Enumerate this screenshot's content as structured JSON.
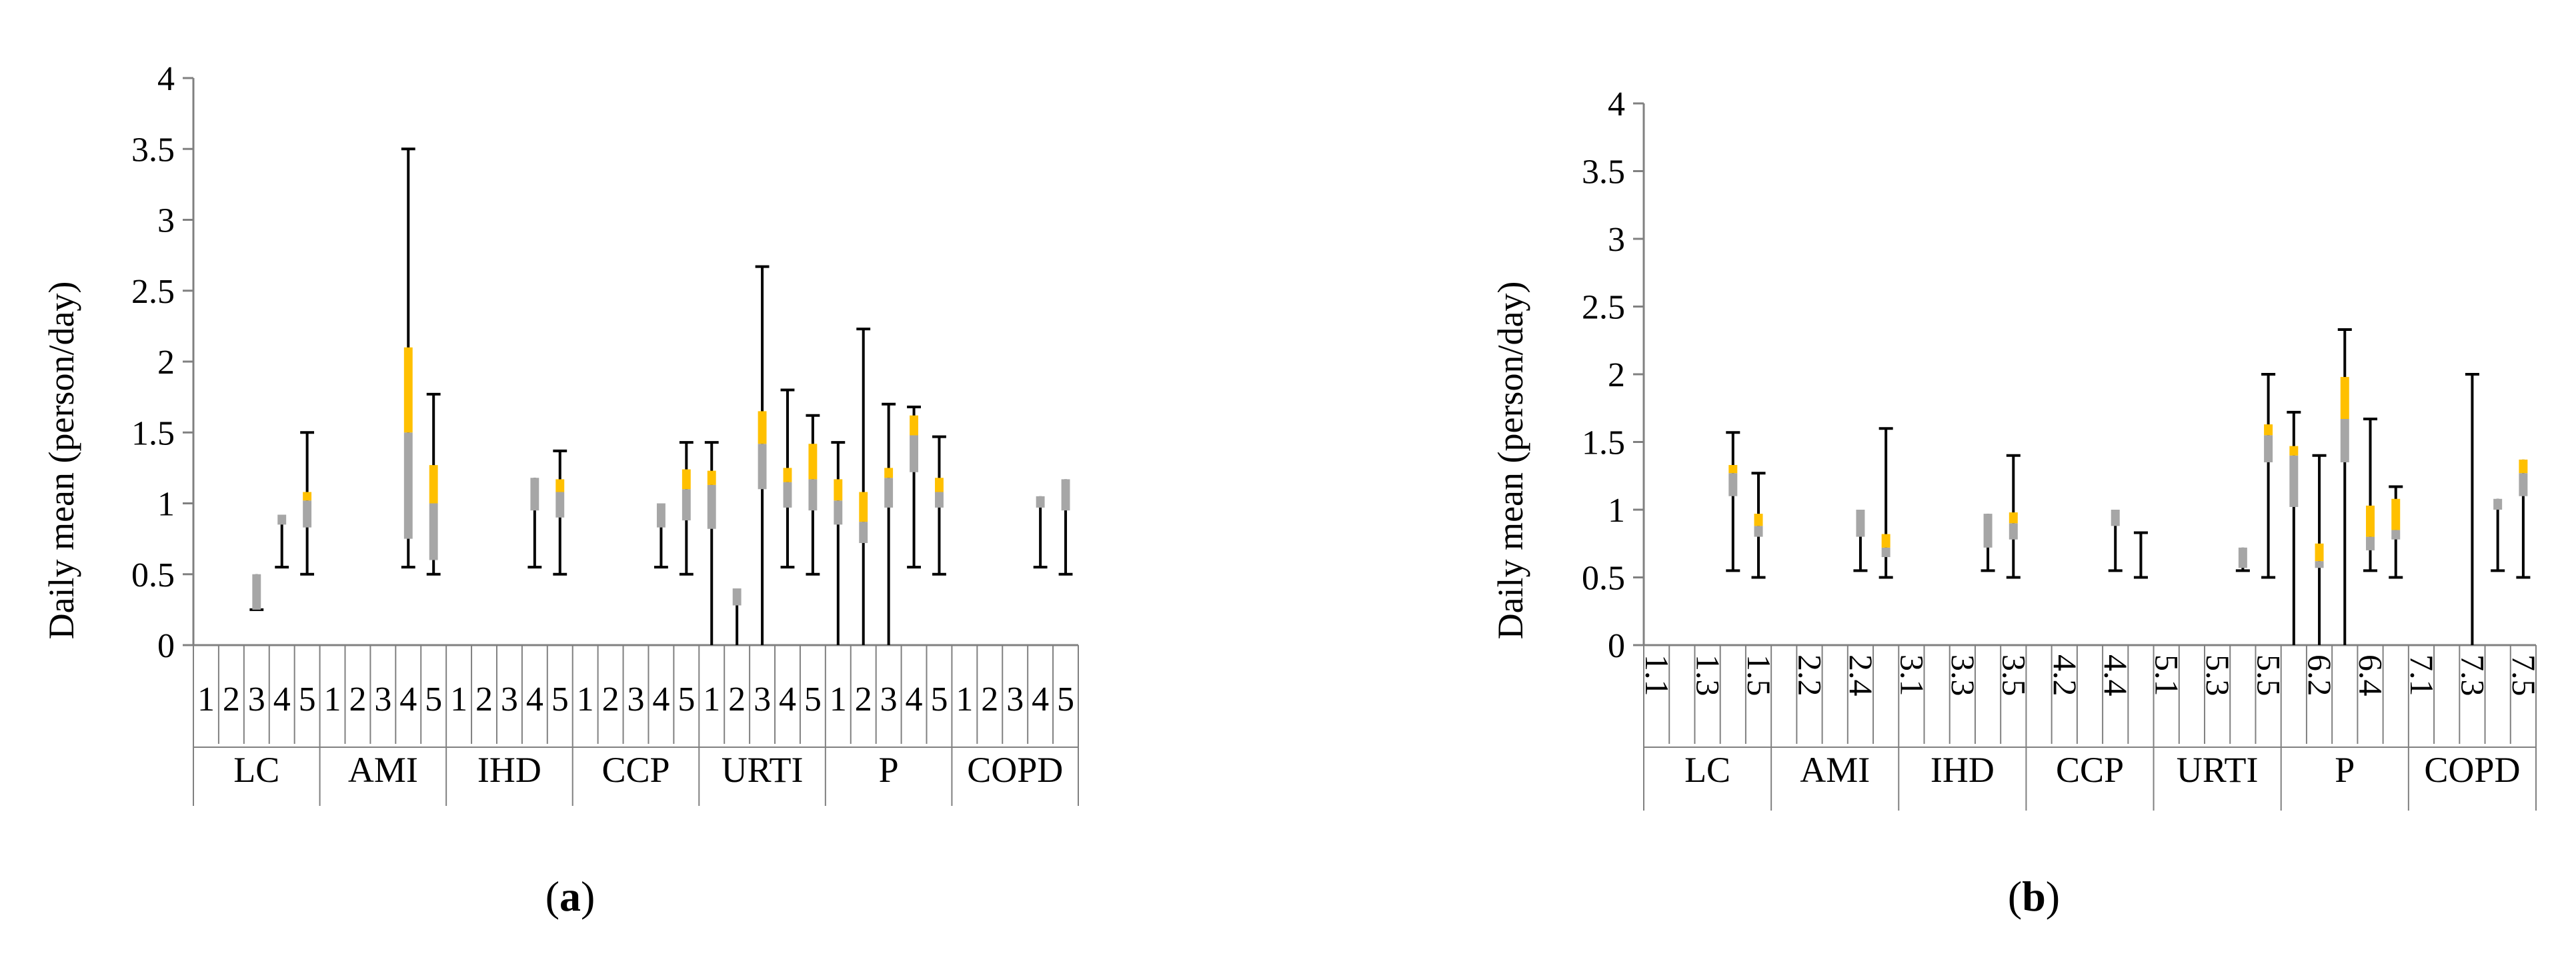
{
  "colors": {
    "box_lower": "#a6a6a6",
    "box_upper": "#ffc000",
    "whisker": "#000000",
    "axis": "#808080",
    "text": "#000000"
  },
  "chart_data": [
    {
      "panel_label": "(a)",
      "type": "box",
      "ylabel": "Daily mean (person/day)",
      "ylim": [
        0,
        4
      ],
      "yticks": [
        "0",
        "0.5",
        "1",
        "1.5",
        "2",
        "2.5",
        "3",
        "3.5",
        "4"
      ],
      "groups": [
        {
          "name": "LC",
          "categories": [
            "1",
            "2",
            "3",
            "4",
            "5"
          ]
        },
        {
          "name": "AMI",
          "categories": [
            "1",
            "2",
            "3",
            "4",
            "5"
          ]
        },
        {
          "name": "IHD",
          "categories": [
            "1",
            "2",
            "3",
            "4",
            "5"
          ]
        },
        {
          "name": "CCP",
          "categories": [
            "1",
            "2",
            "3",
            "4",
            "5"
          ]
        },
        {
          "name": "URTI",
          "categories": [
            "1",
            "2",
            "3",
            "4",
            "5"
          ]
        },
        {
          "name": "P",
          "categories": [
            "1",
            "2",
            "3",
            "4",
            "5"
          ]
        },
        {
          "name": "COPD",
          "categories": [
            "1",
            "2",
            "3",
            "4",
            "5"
          ]
        }
      ],
      "boxes": [
        {
          "group": 0,
          "index": 2,
          "min": 0.25,
          "q1": 0.25,
          "median": 0.5,
          "q3": 0.5,
          "max": 0.5
        },
        {
          "group": 0,
          "index": 3,
          "min": 0.55,
          "q1": 0.85,
          "median": 0.92,
          "q3": 0.92,
          "max": 0.92
        },
        {
          "group": 0,
          "index": 4,
          "min": 0.5,
          "q1": 0.83,
          "median": 1.02,
          "q3": 1.08,
          "max": 1.5
        },
        {
          "group": 1,
          "index": 3,
          "min": 0.55,
          "q1": 0.75,
          "median": 1.5,
          "q3": 2.1,
          "max": 3.5
        },
        {
          "group": 1,
          "index": 4,
          "min": 0.5,
          "q1": 0.6,
          "median": 1.0,
          "q3": 1.27,
          "max": 1.77
        },
        {
          "group": 2,
          "index": 3,
          "min": 0.55,
          "q1": 0.95,
          "median": 1.18,
          "q3": 1.18,
          "max": 1.18
        },
        {
          "group": 2,
          "index": 4,
          "min": 0.5,
          "q1": 0.9,
          "median": 1.08,
          "q3": 1.17,
          "max": 1.37
        },
        {
          "group": 3,
          "index": 3,
          "min": 0.55,
          "q1": 0.83,
          "median": 1.0,
          "q3": 1.0,
          "max": 1.0
        },
        {
          "group": 3,
          "index": 4,
          "min": 0.5,
          "q1": 0.88,
          "median": 1.1,
          "q3": 1.24,
          "max": 1.43
        },
        {
          "group": 4,
          "index": 0,
          "min": 0.0,
          "q1": 0.82,
          "median": 1.13,
          "q3": 1.23,
          "max": 1.43
        },
        {
          "group": 4,
          "index": 1,
          "min": 0.0,
          "q1": 0.28,
          "median": 0.4,
          "q3": 0.4,
          "max": 0.4
        },
        {
          "group": 4,
          "index": 2,
          "min": 0.0,
          "q1": 1.1,
          "median": 1.42,
          "q3": 1.65,
          "max": 2.67
        },
        {
          "group": 4,
          "index": 3,
          "min": 0.55,
          "q1": 0.97,
          "median": 1.15,
          "q3": 1.25,
          "max": 1.8
        },
        {
          "group": 4,
          "index": 4,
          "min": 0.5,
          "q1": 0.95,
          "median": 1.17,
          "q3": 1.42,
          "max": 1.62
        },
        {
          "group": 5,
          "index": 0,
          "min": 0.0,
          "q1": 0.85,
          "median": 1.02,
          "q3": 1.17,
          "max": 1.43
        },
        {
          "group": 5,
          "index": 1,
          "min": 0.0,
          "q1": 0.72,
          "median": 0.87,
          "q3": 1.08,
          "max": 2.23
        },
        {
          "group": 5,
          "index": 2,
          "min": 0.0,
          "q1": 0.97,
          "median": 1.18,
          "q3": 1.25,
          "max": 1.7
        },
        {
          "group": 5,
          "index": 3,
          "min": 0.55,
          "q1": 1.22,
          "median": 1.48,
          "q3": 1.62,
          "max": 1.68
        },
        {
          "group": 5,
          "index": 4,
          "min": 0.5,
          "q1": 0.97,
          "median": 1.08,
          "q3": 1.18,
          "max": 1.47
        },
        {
          "group": 6,
          "index": 3,
          "min": 0.55,
          "q1": 0.97,
          "median": 1.05,
          "q3": 1.05,
          "max": 1.05
        },
        {
          "group": 6,
          "index": 4,
          "min": 0.5,
          "q1": 0.95,
          "median": 1.17,
          "q3": 1.17,
          "max": 1.17
        }
      ]
    },
    {
      "panel_label": "(b)",
      "type": "box",
      "ylabel": "Daily mean (person/day)",
      "ylim": [
        0,
        4
      ],
      "yticks": [
        "0",
        "0.5",
        "1",
        "1.5",
        "2",
        "2.5",
        "3",
        "3.5",
        "4"
      ],
      "groups": [
        {
          "name": "LC",
          "categories": [
            "1.1",
            "",
            "1.3",
            "",
            "1.5"
          ]
        },
        {
          "name": "AMI",
          "categories": [
            "",
            "2.2",
            "",
            "2.4",
            ""
          ]
        },
        {
          "name": "IHD",
          "categories": [
            "3.1",
            "",
            "3.3",
            "",
            "3.5"
          ]
        },
        {
          "name": "CCP",
          "categories": [
            "",
            "4.2",
            "",
            "4.4",
            ""
          ]
        },
        {
          "name": "URTI",
          "categories": [
            "5.1",
            "",
            "5.3",
            "",
            "5.5"
          ]
        },
        {
          "name": "P",
          "categories": [
            "",
            "6.2",
            "",
            "6.4",
            ""
          ]
        },
        {
          "name": "COPD",
          "categories": [
            "7.1",
            "",
            "7.3",
            "",
            "7.5"
          ]
        }
      ],
      "boxes": [
        {
          "group": 0,
          "index": 3,
          "min": 0.55,
          "q1": 1.1,
          "median": 1.27,
          "q3": 1.33,
          "max": 1.57
        },
        {
          "group": 0,
          "index": 4,
          "min": 0.5,
          "q1": 0.8,
          "median": 0.88,
          "q3": 0.97,
          "max": 1.27
        },
        {
          "group": 1,
          "index": 3,
          "min": 0.55,
          "q1": 0.8,
          "median": 1.0,
          "q3": 1.0,
          "max": 1.0
        },
        {
          "group": 1,
          "index": 4,
          "min": 0.5,
          "q1": 0.65,
          "median": 0.72,
          "q3": 0.82,
          "max": 1.6
        },
        {
          "group": 2,
          "index": 3,
          "min": 0.55,
          "q1": 0.72,
          "median": 0.97,
          "q3": 0.97,
          "max": 0.97
        },
        {
          "group": 2,
          "index": 4,
          "min": 0.5,
          "q1": 0.78,
          "median": 0.9,
          "q3": 0.98,
          "max": 1.4
        },
        {
          "group": 3,
          "index": 3,
          "min": 0.55,
          "q1": 0.88,
          "median": 1.0,
          "q3": 1.0,
          "max": 1.0
        },
        {
          "group": 3,
          "index": 4,
          "min": 0.5,
          "q1": 0.5,
          "median": 0.5,
          "q3": 0.5,
          "max": 0.83
        },
        {
          "group": 4,
          "index": 3,
          "min": 0.55,
          "q1": 0.57,
          "median": 0.72,
          "q3": 0.72,
          "max": 0.72
        },
        {
          "group": 4,
          "index": 4,
          "min": 0.5,
          "q1": 1.35,
          "median": 1.55,
          "q3": 1.63,
          "max": 2.0
        },
        {
          "group": 5,
          "index": 0,
          "min": 0.0,
          "q1": 1.02,
          "median": 1.4,
          "q3": 1.47,
          "max": 1.72
        },
        {
          "group": 5,
          "index": 1,
          "min": 0.0,
          "q1": 0.57,
          "median": 0.62,
          "q3": 0.75,
          "max": 1.4
        },
        {
          "group": 5,
          "index": 2,
          "min": 0.0,
          "q1": 1.35,
          "median": 1.67,
          "q3": 1.98,
          "max": 2.33
        },
        {
          "group": 5,
          "index": 3,
          "min": 0.55,
          "q1": 0.7,
          "median": 0.8,
          "q3": 1.03,
          "max": 1.67
        },
        {
          "group": 5,
          "index": 4,
          "min": 0.5,
          "q1": 0.78,
          "median": 0.85,
          "q3": 1.08,
          "max": 1.17
        },
        {
          "group": 6,
          "index": 2,
          "min": 0.0,
          "q1": 0.0,
          "median": 0.0,
          "q3": 0.0,
          "max": 2.0
        },
        {
          "group": 6,
          "index": 3,
          "min": 0.55,
          "q1": 1.0,
          "median": 1.08,
          "q3": 1.08,
          "max": 1.08
        },
        {
          "group": 6,
          "index": 4,
          "min": 0.5,
          "q1": 1.1,
          "median": 1.27,
          "q3": 1.37,
          "max": 1.37
        }
      ]
    }
  ]
}
